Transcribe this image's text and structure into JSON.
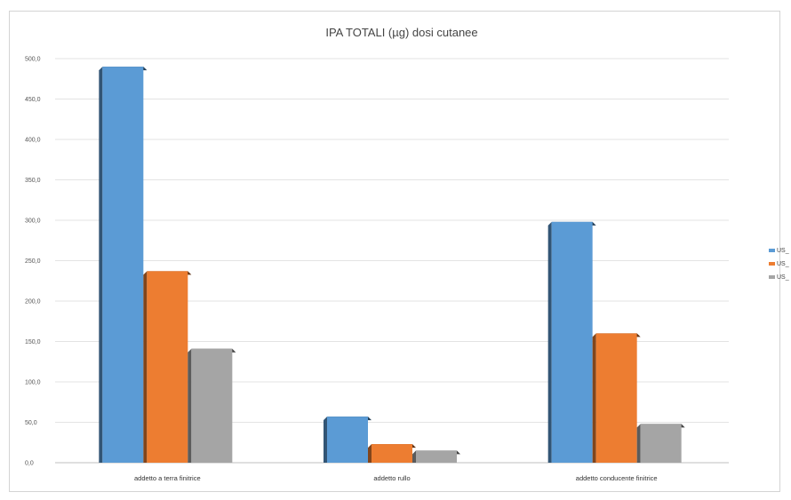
{
  "chart_data": {
    "type": "bar",
    "title": "IPA TOTALI (µg) dosi cutanee",
    "xlabel": "",
    "ylabel": "",
    "categories": [
      "addetto a terra finitrice",
      "addetto rullo",
      "addetto conducente finitrice"
    ],
    "ylim": [
      0,
      500
    ],
    "yticks": [
      "0,0",
      "50,0",
      "100,0",
      "150,0",
      "200,0",
      "250,0",
      "300,0",
      "350,0",
      "400,0",
      "450,0",
      "500,0"
    ],
    "grid": true,
    "legend_position": "right",
    "series": [
      {
        "name": "US_",
        "color": "#5b9bd5",
        "values": [
          490,
          57,
          298
        ]
      },
      {
        "name": "US_",
        "color": "#ed7d31",
        "values": [
          237,
          23,
          160
        ]
      },
      {
        "name": "US_",
        "color": "#a5a5a5",
        "values": [
          141,
          15,
          48
        ]
      }
    ]
  }
}
